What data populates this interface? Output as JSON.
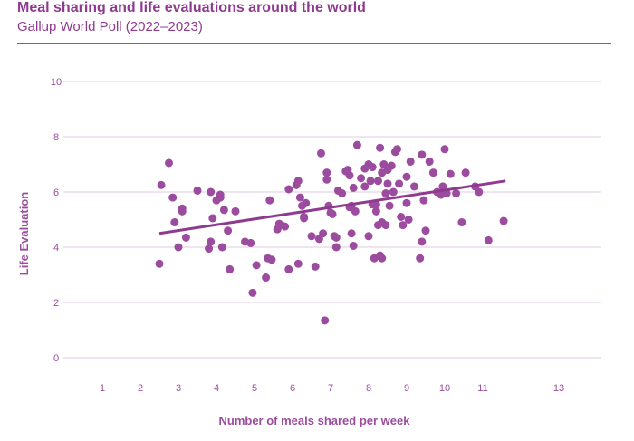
{
  "header": {
    "title": "Meal sharing and life evaluations around the world",
    "subtitle": "Gallup World Poll (2022–2023)"
  },
  "colors": {
    "accent": "#8e3a8f",
    "point": "#9c4c9e",
    "grid": "#dfcbe0"
  },
  "chart_data": {
    "type": "scatter",
    "title": "Meal sharing and life evaluations around the world",
    "subtitle": "Gallup World Poll (2022–2023)",
    "xlabel": "Number of meals shared per week",
    "ylabel": "Life Evaluation",
    "xlim": [
      0,
      13
    ],
    "ylim": [
      0,
      10
    ],
    "x_ticks": [
      1,
      2,
      3,
      4,
      5,
      6,
      7,
      8,
      9,
      10,
      11,
      13
    ],
    "x_tick_labels": [
      "1",
      "2",
      "3",
      "4",
      "5",
      "6",
      "7",
      "8",
      "9",
      "10",
      "11",
      "13"
    ],
    "y_ticks": [
      0,
      2,
      4,
      6,
      8,
      10
    ],
    "y_tick_labels": [
      "0",
      "2",
      "4",
      "6",
      "8",
      "10"
    ],
    "grid": true,
    "trend_line": {
      "x": [
        2.5,
        11.6
      ],
      "y": [
        4.5,
        6.4
      ]
    },
    "points": [
      [
        2.5,
        3.4
      ],
      [
        2.55,
        6.25
      ],
      [
        2.75,
        7.05
      ],
      [
        2.85,
        5.8
      ],
      [
        2.9,
        4.9
      ],
      [
        3.0,
        4.0
      ],
      [
        3.1,
        5.4
      ],
      [
        3.1,
        5.3
      ],
      [
        3.2,
        4.35
      ],
      [
        3.5,
        6.05
      ],
      [
        3.8,
        3.95
      ],
      [
        3.85,
        6.0
      ],
      [
        3.85,
        4.2
      ],
      [
        3.9,
        5.05
      ],
      [
        4.0,
        5.7
      ],
      [
        4.1,
        5.9
      ],
      [
        4.1,
        5.8
      ],
      [
        4.15,
        4.0
      ],
      [
        4.2,
        5.35
      ],
      [
        4.3,
        4.6
      ],
      [
        4.35,
        3.2
      ],
      [
        4.5,
        5.3
      ],
      [
        4.75,
        4.2
      ],
      [
        4.9,
        4.15
      ],
      [
        4.95,
        2.35
      ],
      [
        5.05,
        3.35
      ],
      [
        5.3,
        2.9
      ],
      [
        5.35,
        3.6
      ],
      [
        5.4,
        5.7
      ],
      [
        5.45,
        3.55
      ],
      [
        5.6,
        4.65
      ],
      [
        5.65,
        4.85
      ],
      [
        5.7,
        4.8
      ],
      [
        5.8,
        4.75
      ],
      [
        5.9,
        3.2
      ],
      [
        5.9,
        6.1
      ],
      [
        6.1,
        6.25
      ],
      [
        6.15,
        6.4
      ],
      [
        6.15,
        3.4
      ],
      [
        6.2,
        5.8
      ],
      [
        6.25,
        5.5
      ],
      [
        6.3,
        5.1
      ],
      [
        6.3,
        5.05
      ],
      [
        6.35,
        5.6
      ],
      [
        6.5,
        4.4
      ],
      [
        6.6,
        3.3
      ],
      [
        6.7,
        4.3
      ],
      [
        6.75,
        7.4
      ],
      [
        6.8,
        4.5
      ],
      [
        6.85,
        1.35
      ],
      [
        6.9,
        6.7
      ],
      [
        6.9,
        6.45
      ],
      [
        6.95,
        5.5
      ],
      [
        7.0,
        5.25
      ],
      [
        7.05,
        5.2
      ],
      [
        7.1,
        4.4
      ],
      [
        7.15,
        4.35
      ],
      [
        7.15,
        4.0
      ],
      [
        7.2,
        6.05
      ],
      [
        7.3,
        5.95
      ],
      [
        7.4,
        6.75
      ],
      [
        7.45,
        6.8
      ],
      [
        7.5,
        6.6
      ],
      [
        7.5,
        5.45
      ],
      [
        7.55,
        5.5
      ],
      [
        7.55,
        4.5
      ],
      [
        7.6,
        6.15
      ],
      [
        7.6,
        4.05
      ],
      [
        7.65,
        5.3
      ],
      [
        7.7,
        7.7
      ],
      [
        7.8,
        6.5
      ],
      [
        7.9,
        6.85
      ],
      [
        8.0,
        7.0
      ],
      [
        8.0,
        4.4
      ],
      [
        8.05,
        6.4
      ],
      [
        8.1,
        6.9
      ],
      [
        8.1,
        5.55
      ],
      [
        8.15,
        3.6
      ],
      [
        8.2,
        5.55
      ],
      [
        8.2,
        5.3
      ],
      [
        8.25,
        6.4
      ],
      [
        8.25,
        4.8
      ],
      [
        8.3,
        3.7
      ],
      [
        8.3,
        7.6
      ],
      [
        8.35,
        6.7
      ],
      [
        8.35,
        3.6
      ],
      [
        8.4,
        7.0
      ],
      [
        8.45,
        5.95
      ],
      [
        8.5,
        6.3
      ],
      [
        8.5,
        6.8
      ],
      [
        8.55,
        5.5
      ],
      [
        8.6,
        6.95
      ],
      [
        8.65,
        6.0
      ],
      [
        8.7,
        7.45
      ],
      [
        8.75,
        7.55
      ],
      [
        8.8,
        6.3
      ],
      [
        8.85,
        5.1
      ],
      [
        8.9,
        4.8
      ],
      [
        9.0,
        6.55
      ],
      [
        9.0,
        5.6
      ],
      [
        9.05,
        5.0
      ],
      [
        9.1,
        7.1
      ],
      [
        9.2,
        6.2
      ],
      [
        9.35,
        3.6
      ],
      [
        9.4,
        4.2
      ],
      [
        9.4,
        7.35
      ],
      [
        9.45,
        5.7
      ],
      [
        9.5,
        4.6
      ],
      [
        9.6,
        7.1
      ],
      [
        9.7,
        6.7
      ],
      [
        9.8,
        6.0
      ],
      [
        9.9,
        5.9
      ],
      [
        9.95,
        6.2
      ],
      [
        10.0,
        7.55
      ],
      [
        10.05,
        5.95
      ],
      [
        10.15,
        6.65
      ],
      [
        10.3,
        5.95
      ],
      [
        10.45,
        4.9
      ],
      [
        10.55,
        6.7
      ],
      [
        10.8,
        6.2
      ],
      [
        10.9,
        6.0
      ],
      [
        11.15,
        4.25
      ],
      [
        11.55,
        4.95
      ],
      [
        8.45,
        4.8
      ],
      [
        8.35,
        4.9
      ],
      [
        7.9,
        6.2
      ]
    ]
  }
}
